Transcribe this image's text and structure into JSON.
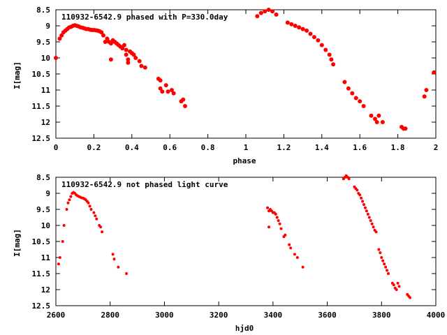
{
  "chart_data": [
    {
      "type": "scatter",
      "title": "110932-6542.9 phased with P=330.0day",
      "xlabel": "phase",
      "ylabel": "I[mag]",
      "xlim": [
        0,
        2
      ],
      "ylim": [
        12.5,
        8.5
      ],
      "y_inverted": true,
      "xticks": [
        "0",
        "0.2",
        "0.4",
        "0.6",
        "0.8",
        "1",
        "1.2",
        "1.4",
        "1.6",
        "1.8",
        "2"
      ],
      "yticks": [
        "8.5",
        "9",
        "9.5",
        "10",
        "10.5",
        "11",
        "11.5",
        "12",
        "12.5"
      ],
      "grid": false,
      "color": "#ff0000",
      "points": [
        [
          0.0,
          10.0
        ],
        [
          0.02,
          9.4
        ],
        [
          0.03,
          9.3
        ],
        [
          0.04,
          9.2
        ],
        [
          0.05,
          9.15
        ],
        [
          0.06,
          9.1
        ],
        [
          0.07,
          9.05
        ],
        [
          0.08,
          9.03
        ],
        [
          0.09,
          9.0
        ],
        [
          0.1,
          8.98
        ],
        [
          0.11,
          9.0
        ],
        [
          0.12,
          9.02
        ],
        [
          0.13,
          9.05
        ],
        [
          0.14,
          9.06
        ],
        [
          0.15,
          9.08
        ],
        [
          0.16,
          9.1
        ],
        [
          0.17,
          9.1
        ],
        [
          0.18,
          9.12
        ],
        [
          0.19,
          9.13
        ],
        [
          0.2,
          9.13
        ],
        [
          0.21,
          9.14
        ],
        [
          0.22,
          9.15
        ],
        [
          0.23,
          9.17
        ],
        [
          0.24,
          9.2
        ],
        [
          0.25,
          9.3
        ],
        [
          0.26,
          9.5
        ],
        [
          0.27,
          9.4
        ],
        [
          0.28,
          9.5
        ],
        [
          0.29,
          9.55
        ],
        [
          0.29,
          10.05
        ],
        [
          0.3,
          9.45
        ],
        [
          0.31,
          9.5
        ],
        [
          0.32,
          9.55
        ],
        [
          0.33,
          9.6
        ],
        [
          0.34,
          9.65
        ],
        [
          0.35,
          9.7
        ],
        [
          0.36,
          9.6
        ],
        [
          0.37,
          9.75
        ],
        [
          0.37,
          9.9
        ],
        [
          0.38,
          10.05
        ],
        [
          0.38,
          10.15
        ],
        [
          0.39,
          9.8
        ],
        [
          0.4,
          9.85
        ],
        [
          0.41,
          9.9
        ],
        [
          0.42,
          10.0
        ],
        [
          0.44,
          10.1
        ],
        [
          0.45,
          10.25
        ],
        [
          0.47,
          10.3
        ],
        [
          0.54,
          10.65
        ],
        [
          0.55,
          10.7
        ],
        [
          0.55,
          10.95
        ],
        [
          0.56,
          11.05
        ],
        [
          0.58,
          10.85
        ],
        [
          0.59,
          11.05
        ],
        [
          0.61,
          11.0
        ],
        [
          0.62,
          11.1
        ],
        [
          0.66,
          11.35
        ],
        [
          0.67,
          11.3
        ],
        [
          0.68,
          11.5
        ],
        [
          1.06,
          8.7
        ],
        [
          1.08,
          8.6
        ],
        [
          1.1,
          8.55
        ],
        [
          1.12,
          8.5
        ],
        [
          1.14,
          8.55
        ],
        [
          1.16,
          8.65
        ],
        [
          1.22,
          8.9
        ],
        [
          1.24,
          8.95
        ],
        [
          1.26,
          9.0
        ],
        [
          1.28,
          9.05
        ],
        [
          1.3,
          9.1
        ],
        [
          1.32,
          9.15
        ],
        [
          1.34,
          9.25
        ],
        [
          1.36,
          9.35
        ],
        [
          1.38,
          9.45
        ],
        [
          1.4,
          9.6
        ],
        [
          1.42,
          9.75
        ],
        [
          1.44,
          9.9
        ],
        [
          1.45,
          10.05
        ],
        [
          1.46,
          10.2
        ],
        [
          1.52,
          10.75
        ],
        [
          1.54,
          10.95
        ],
        [
          1.56,
          11.1
        ],
        [
          1.58,
          11.25
        ],
        [
          1.6,
          11.35
        ],
        [
          1.62,
          11.5
        ],
        [
          1.66,
          11.8
        ],
        [
          1.68,
          11.9
        ],
        [
          1.69,
          12.0
        ],
        [
          1.7,
          11.8
        ],
        [
          1.72,
          12.0
        ],
        [
          1.82,
          12.15
        ],
        [
          1.83,
          12.2
        ],
        [
          1.84,
          12.2
        ],
        [
          1.94,
          11.2
        ],
        [
          1.95,
          11.0
        ],
        [
          1.99,
          10.45
        ]
      ]
    },
    {
      "type": "scatter",
      "title": "110932-6542.9 not phased light curve",
      "xlabel": "hjd0",
      "ylabel": "I[mag]",
      "xlim": [
        2600,
        4000
      ],
      "ylim": [
        12.5,
        8.5
      ],
      "y_inverted": true,
      "xticks": [
        "2600",
        "2800",
        "3000",
        "3200",
        "3400",
        "3600",
        "3800",
        "4000"
      ],
      "yticks": [
        "8.5",
        "9",
        "9.5",
        "10",
        "10.5",
        "11",
        "11.5",
        "12",
        "12.5"
      ],
      "grid": false,
      "color": "#ff0000",
      "points": [
        [
          2610,
          11.2
        ],
        [
          2615,
          11.0
        ],
        [
          2625,
          10.5
        ],
        [
          2630,
          10.0
        ],
        [
          2640,
          9.5
        ],
        [
          2645,
          9.3
        ],
        [
          2650,
          9.2
        ],
        [
          2655,
          9.1
        ],
        [
          2660,
          9.0
        ],
        [
          2665,
          8.97
        ],
        [
          2670,
          9.0
        ],
        [
          2675,
          9.05
        ],
        [
          2680,
          9.08
        ],
        [
          2685,
          9.1
        ],
        [
          2690,
          9.12
        ],
        [
          2695,
          9.14
        ],
        [
          2700,
          9.15
        ],
        [
          2705,
          9.17
        ],
        [
          2710,
          9.2
        ],
        [
          2715,
          9.25
        ],
        [
          2720,
          9.3
        ],
        [
          2725,
          9.4
        ],
        [
          2730,
          9.5
        ],
        [
          2740,
          9.6
        ],
        [
          2745,
          9.7
        ],
        [
          2750,
          9.8
        ],
        [
          2760,
          10.0
        ],
        [
          2765,
          10.05
        ],
        [
          2770,
          10.2
        ],
        [
          2810,
          10.9
        ],
        [
          2815,
          11.05
        ],
        [
          2830,
          11.3
        ],
        [
          2860,
          11.5
        ],
        [
          3380,
          9.45
        ],
        [
          3385,
          9.55
        ],
        [
          3390,
          9.5
        ],
        [
          3395,
          9.55
        ],
        [
          3400,
          9.6
        ],
        [
          3405,
          9.6
        ],
        [
          3410,
          9.65
        ],
        [
          3415,
          9.75
        ],
        [
          3420,
          9.85
        ],
        [
          3425,
          9.95
        ],
        [
          3430,
          10.1
        ],
        [
          3440,
          10.35
        ],
        [
          3445,
          10.3
        ],
        [
          3460,
          10.6
        ],
        [
          3465,
          10.7
        ],
        [
          3480,
          10.9
        ],
        [
          3490,
          11.0
        ],
        [
          3510,
          11.3
        ],
        [
          3385,
          10.05
        ],
        [
          3660,
          8.55
        ],
        [
          3665,
          8.5
        ],
        [
          3670,
          8.45
        ],
        [
          3675,
          8.5
        ],
        [
          3680,
          8.55
        ],
        [
          3700,
          8.8
        ],
        [
          3705,
          8.85
        ],
        [
          3710,
          8.9
        ],
        [
          3715,
          9.0
        ],
        [
          3720,
          9.05
        ],
        [
          3725,
          9.15
        ],
        [
          3730,
          9.25
        ],
        [
          3735,
          9.35
        ],
        [
          3740,
          9.45
        ],
        [
          3745,
          9.55
        ],
        [
          3750,
          9.65
        ],
        [
          3755,
          9.75
        ],
        [
          3760,
          9.85
        ],
        [
          3765,
          9.95
        ],
        [
          3770,
          10.05
        ],
        [
          3775,
          10.15
        ],
        [
          3780,
          10.2
        ],
        [
          3790,
          10.75
        ],
        [
          3795,
          10.85
        ],
        [
          3800,
          11.0
        ],
        [
          3805,
          11.1
        ],
        [
          3810,
          11.2
        ],
        [
          3815,
          11.3
        ],
        [
          3820,
          11.4
        ],
        [
          3825,
          11.5
        ],
        [
          3840,
          11.8
        ],
        [
          3845,
          11.85
        ],
        [
          3850,
          11.95
        ],
        [
          3855,
          12.0
        ],
        [
          3860,
          11.8
        ],
        [
          3865,
          11.9
        ],
        [
          3895,
          12.15
        ],
        [
          3900,
          12.2
        ],
        [
          3905,
          12.25
        ]
      ]
    }
  ]
}
